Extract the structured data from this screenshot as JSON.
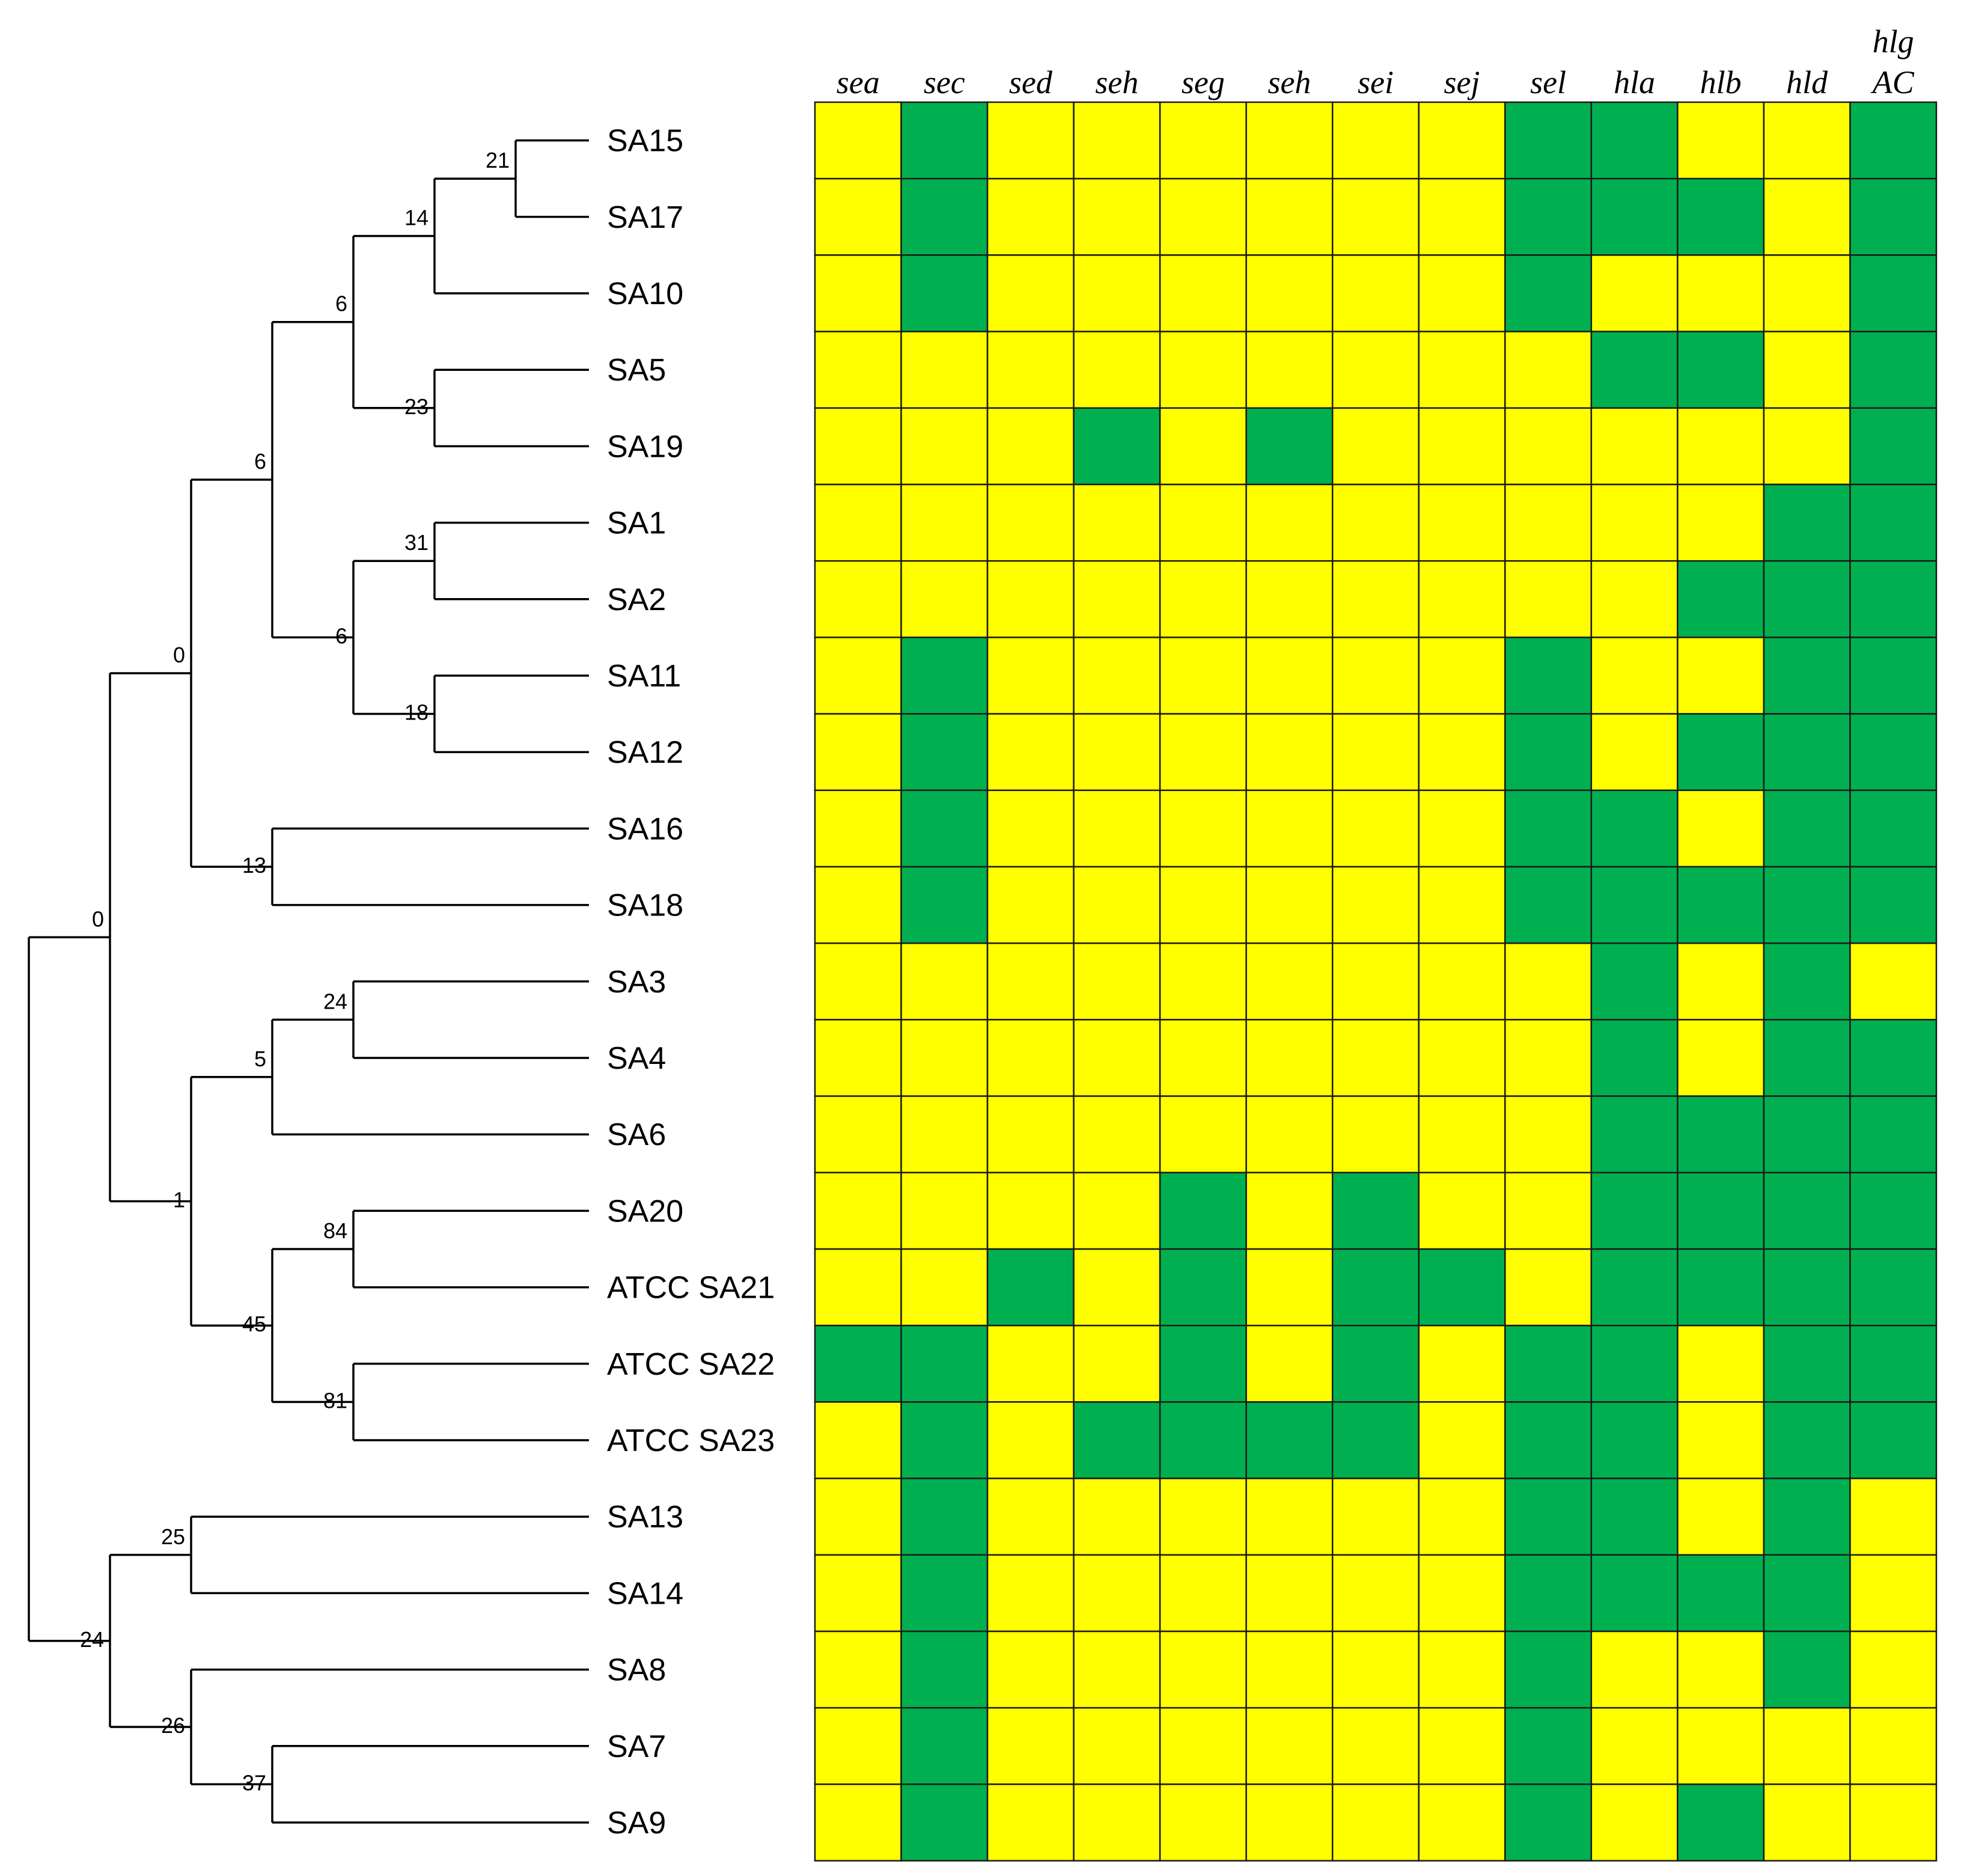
{
  "chart_data": {
    "type": "heatmap",
    "title": "",
    "colors": {
      "present": "#00b050",
      "absent": "#ffff00",
      "grid": "#1a1a1a",
      "tree": "#000000"
    },
    "columns": [
      "sea",
      "sec",
      "sed",
      "seh",
      "seg",
      "seh",
      "sei",
      "sej",
      "sel",
      "hla",
      "hlb",
      "hld",
      "hlg AC"
    ],
    "column_label_lines": [
      [
        "sea"
      ],
      [
        "sec"
      ],
      [
        "sed"
      ],
      [
        "seh"
      ],
      [
        "seg"
      ],
      [
        "seh"
      ],
      [
        "sei"
      ],
      [
        "sej"
      ],
      [
        "sel"
      ],
      [
        "hla"
      ],
      [
        "hlb"
      ],
      [
        "hld"
      ],
      [
        "hlg",
        "AC"
      ]
    ],
    "rows": [
      "SA15",
      "SA17",
      "SA10",
      "SA5",
      "SA19",
      "SA1",
      "SA2",
      "SA11",
      "SA12",
      "SA16",
      "SA18",
      "SA3",
      "SA4",
      "SA6",
      "SA20",
      "ATCC SA21",
      "ATCC SA22",
      "ATCC SA23",
      "SA13",
      "SA14",
      "SA8",
      "SA7",
      "SA9"
    ],
    "matrix": [
      [
        0,
        1,
        0,
        0,
        0,
        0,
        0,
        0,
        1,
        1,
        0,
        0,
        1
      ],
      [
        0,
        1,
        0,
        0,
        0,
        0,
        0,
        0,
        1,
        1,
        1,
        0,
        1
      ],
      [
        0,
        1,
        0,
        0,
        0,
        0,
        0,
        0,
        1,
        0,
        0,
        0,
        1
      ],
      [
        0,
        0,
        0,
        0,
        0,
        0,
        0,
        0,
        0,
        1,
        1,
        0,
        1
      ],
      [
        0,
        0,
        0,
        1,
        0,
        1,
        0,
        0,
        0,
        0,
        0,
        0,
        1
      ],
      [
        0,
        0,
        0,
        0,
        0,
        0,
        0,
        0,
        0,
        0,
        0,
        1,
        1
      ],
      [
        0,
        0,
        0,
        0,
        0,
        0,
        0,
        0,
        0,
        0,
        1,
        1,
        1
      ],
      [
        0,
        1,
        0,
        0,
        0,
        0,
        0,
        0,
        1,
        0,
        0,
        1,
        1
      ],
      [
        0,
        1,
        0,
        0,
        0,
        0,
        0,
        0,
        1,
        0,
        1,
        1,
        1
      ],
      [
        0,
        1,
        0,
        0,
        0,
        0,
        0,
        0,
        1,
        1,
        0,
        1,
        1
      ],
      [
        0,
        1,
        0,
        0,
        0,
        0,
        0,
        0,
        1,
        1,
        1,
        1,
        1
      ],
      [
        0,
        0,
        0,
        0,
        0,
        0,
        0,
        0,
        0,
        1,
        0,
        1,
        0
      ],
      [
        0,
        0,
        0,
        0,
        0,
        0,
        0,
        0,
        0,
        1,
        0,
        1,
        1
      ],
      [
        0,
        0,
        0,
        0,
        0,
        0,
        0,
        0,
        0,
        1,
        1,
        1,
        1
      ],
      [
        0,
        0,
        0,
        0,
        1,
        0,
        1,
        0,
        0,
        1,
        1,
        1,
        1
      ],
      [
        0,
        0,
        1,
        0,
        1,
        0,
        1,
        1,
        0,
        1,
        1,
        1,
        1
      ],
      [
        1,
        1,
        0,
        0,
        1,
        0,
        1,
        0,
        1,
        1,
        0,
        1,
        1
      ],
      [
        0,
        1,
        0,
        1,
        1,
        1,
        1,
        0,
        1,
        1,
        0,
        1,
        1
      ],
      [
        0,
        1,
        0,
        0,
        0,
        0,
        0,
        0,
        1,
        1,
        0,
        1,
        0
      ],
      [
        0,
        1,
        0,
        0,
        0,
        0,
        0,
        0,
        1,
        1,
        1,
        1,
        0
      ],
      [
        0,
        1,
        0,
        0,
        0,
        0,
        0,
        0,
        1,
        0,
        0,
        1,
        0
      ],
      [
        0,
        1,
        0,
        0,
        0,
        0,
        0,
        0,
        1,
        0,
        0,
        0,
        0
      ],
      [
        0,
        1,
        0,
        0,
        0,
        0,
        0,
        0,
        1,
        0,
        1,
        0,
        0
      ]
    ],
    "dendrogram": {
      "type": "cladogram",
      "tree": {
        "children": [
          {
            "bootstrap": "0",
            "children": [
              {
                "bootstrap": "0",
                "children": [
                  {
                    "bootstrap": "6",
                    "children": [
                      {
                        "bootstrap": "6",
                        "children": [
                          {
                            "bootstrap": "14",
                            "children": [
                              {
                                "bootstrap": "21",
                                "children": [
                                  {
                                    "leaf": "SA15"
                                  },
                                  {
                                    "leaf": "SA17"
                                  }
                                ]
                              },
                              {
                                "leaf": "SA10"
                              }
                            ]
                          },
                          {
                            "bootstrap": "23",
                            "children": [
                              {
                                "leaf": "SA5"
                              },
                              {
                                "leaf": "SA19"
                              }
                            ]
                          }
                        ]
                      },
                      {
                        "bootstrap": "6",
                        "children": [
                          {
                            "bootstrap": "31",
                            "children": [
                              {
                                "leaf": "SA1"
                              },
                              {
                                "leaf": "SA2"
                              }
                            ]
                          },
                          {
                            "bootstrap": "18",
                            "children": [
                              {
                                "leaf": "SA11"
                              },
                              {
                                "leaf": "SA12"
                              }
                            ]
                          }
                        ]
                      }
                    ]
                  },
                  {
                    "bootstrap": "13",
                    "children": [
                      {
                        "leaf": "SA16"
                      },
                      {
                        "leaf": "SA18"
                      }
                    ]
                  }
                ]
              },
              {
                "bootstrap": "1",
                "children": [
                  {
                    "bootstrap": "5",
                    "children": [
                      {
                        "bootstrap": "24",
                        "children": [
                          {
                            "leaf": "SA3"
                          },
                          {
                            "leaf": "SA4"
                          }
                        ]
                      },
                      {
                        "leaf": "SA6"
                      }
                    ]
                  },
                  {
                    "bootstrap": "45",
                    "children": [
                      {
                        "bootstrap": "84",
                        "children": [
                          {
                            "leaf": "SA20"
                          },
                          {
                            "leaf": "ATCC SA21"
                          }
                        ]
                      },
                      {
                        "bootstrap": "81",
                        "children": [
                          {
                            "leaf": "ATCC SA22"
                          },
                          {
                            "leaf": "ATCC SA23"
                          }
                        ]
                      }
                    ]
                  }
                ]
              }
            ]
          },
          {
            "bootstrap": "24",
            "children": [
              {
                "bootstrap": "25",
                "children": [
                  {
                    "leaf": "SA13"
                  },
                  {
                    "leaf": "SA14"
                  }
                ]
              },
              {
                "bootstrap": "26",
                "children": [
                  {
                    "leaf": "SA8"
                  },
                  {
                    "bootstrap": "37",
                    "children": [
                      {
                        "leaf": "SA7"
                      },
                      {
                        "leaf": "SA9"
                      }
                    ]
                  }
                ]
              }
            ]
          }
        ]
      }
    }
  }
}
